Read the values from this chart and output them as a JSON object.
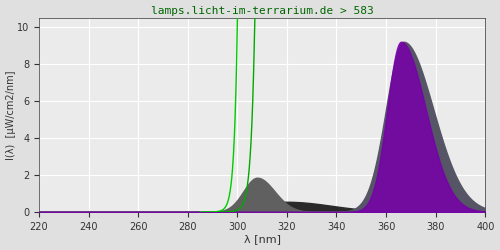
{
  "title": "lamps.licht-im-terrarium.de > 583",
  "xlabel": "λ [nm]",
  "ylabel": "I(λ)  [μW/cm2/nm]",
  "xlim": [
    220,
    400
  ],
  "ylim": [
    0,
    10.5
  ],
  "xticks": [
    220,
    240,
    260,
    280,
    300,
    320,
    340,
    360,
    380,
    400
  ],
  "yticks": [
    0,
    2,
    4,
    6,
    8,
    10
  ],
  "bg_color": "#e0e0e0",
  "plot_bg_color": "#ebebeb",
  "grid_color": "#ffffff",
  "title_color": "#006600",
  "axis_color": "#333333",
  "line1_color": "#00cc00",
  "line2_color": "#00aa00"
}
